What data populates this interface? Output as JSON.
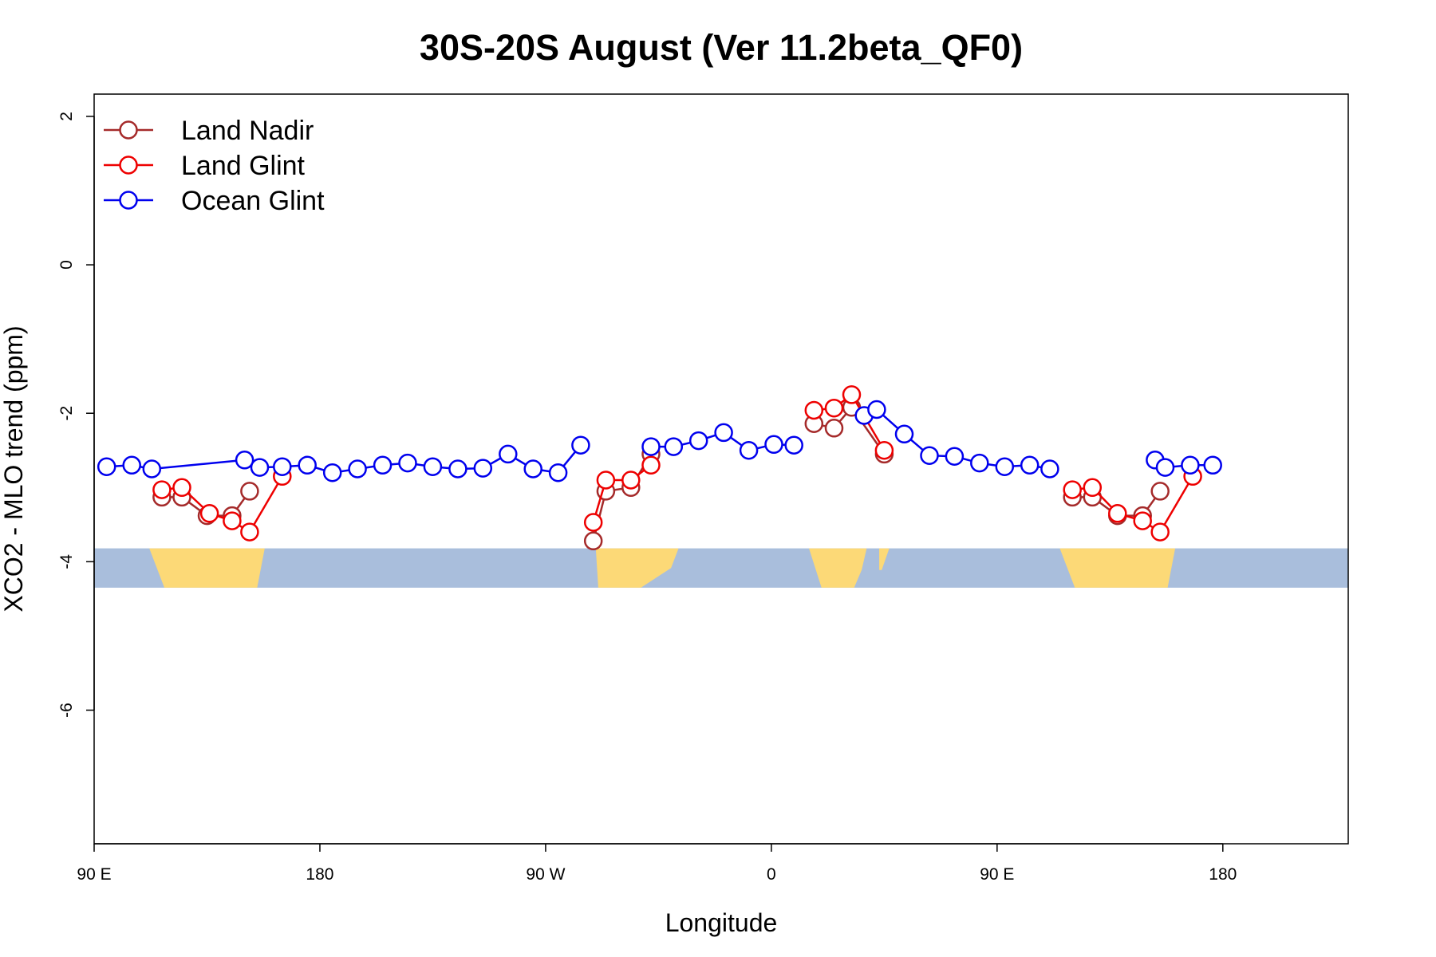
{
  "chart_data": {
    "type": "line",
    "title": "30S-20S August (Ver 11.2beta_QF0)",
    "xlabel": "Longitude",
    "ylabel": "XCO2 - MLO trend (ppm)",
    "xlim": [
      90,
      590
    ],
    "ylim": [
      -7.8,
      2.3
    ],
    "x_ticks": [
      {
        "value": 90,
        "label": "90 E"
      },
      {
        "value": 180,
        "label": "180"
      },
      {
        "value": 270,
        "label": "90 W"
      },
      {
        "value": 360,
        "label": "0"
      },
      {
        "value": 450,
        "label": "90 E"
      },
      {
        "value": 540,
        "label": "180"
      }
    ],
    "y_ticks": [
      {
        "value": 2,
        "label": "2"
      },
      {
        "value": 0,
        "label": "0"
      },
      {
        "value": -2,
        "label": "-2"
      },
      {
        "value": -4,
        "label": "-4"
      },
      {
        "value": -6,
        "label": "-6"
      }
    ],
    "grid": false,
    "legend_position": "top-left",
    "land_strip": {
      "ymin": -4.35,
      "ymax": -3.82,
      "ocean_color": "#a9bedc",
      "land_color": "#fcd977"
    },
    "series": [
      {
        "name": "Land Nadir",
        "color": "#a52a2a",
        "segments": [
          [
            [
              117,
              -3.13
            ],
            [
              125,
              -3.13
            ],
            [
              135,
              -3.38
            ],
            [
              145,
              -3.38
            ],
            [
              152,
              -3.05
            ]
          ],
          [
            [
              289,
              -3.72
            ],
            [
              294,
              -3.05
            ],
            [
              304,
              -3.0
            ],
            [
              312,
              -2.55
            ]
          ],
          [
            [
              377,
              -2.14
            ],
            [
              385,
              -2.2
            ],
            [
              392,
              -1.92
            ],
            [
              405,
              -2.55
            ]
          ],
          [
            [
              480,
              -3.13
            ],
            [
              488,
              -3.13
            ],
            [
              498,
              -3.38
            ],
            [
              508,
              -3.38
            ],
            [
              515,
              -3.05
            ]
          ]
        ]
      },
      {
        "name": "Land Glint",
        "color": "#ee0000",
        "segments": [
          [
            [
              117,
              -3.03
            ],
            [
              125,
              -3.0
            ],
            [
              136,
              -3.35
            ],
            [
              145,
              -3.45
            ],
            [
              152,
              -3.6
            ],
            [
              165,
              -2.85
            ]
          ],
          [
            [
              289,
              -3.47
            ],
            [
              294,
              -2.9
            ],
            [
              304,
              -2.9
            ],
            [
              312,
              -2.7
            ]
          ],
          [
            [
              377,
              -1.96
            ],
            [
              385,
              -1.93
            ],
            [
              392,
              -1.75
            ],
            [
              405,
              -2.5
            ]
          ],
          [
            [
              480,
              -3.03
            ],
            [
              488,
              -3.0
            ],
            [
              498,
              -3.35
            ],
            [
              508,
              -3.45
            ],
            [
              515,
              -3.6
            ],
            [
              528,
              -2.85
            ]
          ]
        ]
      },
      {
        "name": "Ocean Glint",
        "color": "#0000ee",
        "segments": [
          [
            [
              95,
              -2.72
            ],
            [
              105,
              -2.7
            ],
            [
              113,
              -2.75
            ],
            [
              150,
              -2.63
            ],
            [
              156,
              -2.73
            ],
            [
              165,
              -2.72
            ],
            [
              175,
              -2.7
            ],
            [
              185,
              -2.8
            ],
            [
              195,
              -2.75
            ],
            [
              205,
              -2.7
            ],
            [
              215,
              -2.67
            ],
            [
              225,
              -2.72
            ],
            [
              235,
              -2.75
            ],
            [
              245,
              -2.74
            ],
            [
              255,
              -2.55
            ],
            [
              265,
              -2.75
            ],
            [
              275,
              -2.8
            ],
            [
              284,
              -2.43
            ]
          ],
          [
            [
              312,
              -2.45
            ],
            [
              321,
              -2.45
            ],
            [
              331,
              -2.37
            ],
            [
              341,
              -2.26
            ],
            [
              351,
              -2.5
            ],
            [
              361,
              -2.42
            ],
            [
              369,
              -2.43
            ]
          ],
          [
            [
              397,
              -2.03
            ],
            [
              402,
              -1.95
            ],
            [
              413,
              -2.28
            ],
            [
              423,
              -2.57
            ],
            [
              433,
              -2.58
            ],
            [
              443,
              -2.67
            ],
            [
              453,
              -2.72
            ],
            [
              463,
              -2.7
            ],
            [
              471,
              -2.75
            ]
          ],
          [
            [
              513,
              -2.63
            ],
            [
              517,
              -2.73
            ],
            [
              527,
              -2.7
            ],
            [
              536,
              -2.7
            ]
          ]
        ]
      }
    ]
  }
}
